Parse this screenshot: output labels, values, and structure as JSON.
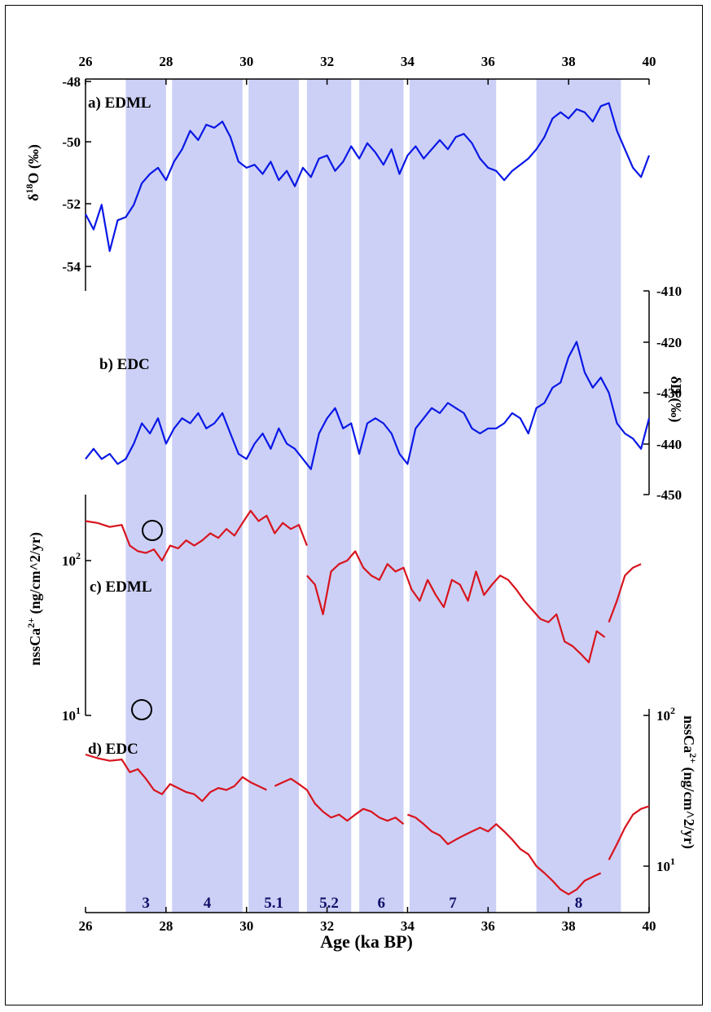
{
  "chart_data": {
    "type": "line",
    "x_axis": {
      "label": "Age (ka BP)",
      "range": [
        26,
        40
      ],
      "ticks": [
        "26",
        "28",
        "30",
        "32",
        "34",
        "36",
        "38",
        "40"
      ]
    },
    "bands": [
      {
        "label": "3",
        "x": [
          27.0,
          28.0
        ]
      },
      {
        "label": "4",
        "x": [
          28.15,
          29.9
        ]
      },
      {
        "label": "5.1",
        "x": [
          30.05,
          31.3
        ]
      },
      {
        "label": "5.2",
        "x": [
          31.5,
          32.6
        ]
      },
      {
        "label": "6",
        "x": [
          32.8,
          33.9
        ]
      },
      {
        "label": "7",
        "x": [
          34.05,
          36.2
        ]
      },
      {
        "label": "8",
        "x": [
          37.2,
          39.3
        ]
      }
    ],
    "band_color": "#8e97ea",
    "panels": [
      {
        "id": "a",
        "label": "a) EDML",
        "ylabel": "δ18O (‰)",
        "ylim": [
          -55,
          -48
        ],
        "yticks": [
          "-48",
          "-50",
          "-52",
          "-54"
        ],
        "axis_side": "left",
        "color": "#0a18e6",
        "series": [
          {
            "x": [
              26.0,
              26.2,
              26.4,
              26.6,
              26.8,
              27.0,
              27.2,
              27.4,
              27.6,
              27.8,
              28.0,
              28.2,
              28.4,
              28.6,
              28.8,
              29.0,
              29.2,
              29.4,
              29.6,
              29.8,
              30.0,
              30.2,
              30.4,
              30.6,
              30.8,
              31.0,
              31.2,
              31.4,
              31.6,
              31.8,
              32.0,
              32.2,
              32.4,
              32.6,
              32.8,
              33.0,
              33.2,
              33.4,
              33.6,
              33.8,
              34.0,
              34.2,
              34.4,
              34.6,
              34.8,
              35.0,
              35.2,
              35.4,
              35.6,
              35.8,
              36.0,
              36.2,
              36.4,
              36.6,
              36.8,
              37.0,
              37.2,
              37.4,
              37.6,
              37.8,
              38.0,
              38.2,
              38.4,
              38.6,
              38.8,
              39.0,
              39.2,
              39.4,
              39.6,
              39.8,
              40.0
            ],
            "y": [
              -52.3,
              -52.8,
              -52.0,
              -53.5,
              -52.5,
              -52.4,
              -52.0,
              -51.3,
              -51.0,
              -50.8,
              -51.2,
              -50.6,
              -50.2,
              -49.6,
              -49.9,
              -49.4,
              -49.5,
              -49.3,
              -49.8,
              -50.6,
              -50.8,
              -50.7,
              -51.0,
              -50.6,
              -51.2,
              -50.9,
              -51.4,
              -50.8,
              -51.1,
              -50.5,
              -50.4,
              -50.9,
              -50.6,
              -50.1,
              -50.5,
              -50.0,
              -50.3,
              -50.7,
              -50.2,
              -51.0,
              -50.4,
              -50.1,
              -50.5,
              -50.2,
              -49.9,
              -50.2,
              -49.8,
              -49.7,
              -50.0,
              -50.5,
              -50.8,
              -50.9,
              -51.2,
              -50.9,
              -50.7,
              -50.5,
              -50.2,
              -49.8,
              -49.2,
              -49.0,
              -49.2,
              -48.9,
              -49.0,
              -49.3,
              -48.8,
              -48.7,
              -49.6,
              -50.2,
              -50.8,
              -51.1,
              -50.4
            ]
          }
        ]
      },
      {
        "id": "b",
        "label": "b) EDC",
        "ylabel": "δD (‰)",
        "ylim": [
          -450,
          -410
        ],
        "yticks": [
          "-410",
          "-420",
          "-430",
          "-440",
          "-450"
        ],
        "axis_side": "right",
        "color": "#0a18e6",
        "series": [
          {
            "x": [
              26.0,
              26.2,
              26.4,
              26.6,
              26.8,
              27.0,
              27.2,
              27.4,
              27.6,
              27.8,
              28.0,
              28.2,
              28.4,
              28.6,
              28.8,
              29.0,
              29.2,
              29.4,
              29.6,
              29.8,
              30.0,
              30.2,
              30.4,
              30.6,
              30.8,
              31.0,
              31.2,
              31.4,
              31.6,
              31.8,
              32.0,
              32.2,
              32.4,
              32.6,
              32.8,
              33.0,
              33.2,
              33.4,
              33.6,
              33.8,
              34.0,
              34.2,
              34.4,
              34.6,
              34.8,
              35.0,
              35.2,
              35.4,
              35.6,
              35.8,
              36.0,
              36.2,
              36.4,
              36.6,
              36.8,
              37.0,
              37.2,
              37.4,
              37.6,
              37.8,
              38.0,
              38.2,
              38.4,
              38.6,
              38.8,
              39.0,
              39.2,
              39.4,
              39.6,
              39.8,
              40.0
            ],
            "y": [
              -443,
              -441,
              -443,
              -442,
              -444,
              -443,
              -440,
              -436,
              -438,
              -435,
              -440,
              -437,
              -435,
              -436,
              -434,
              -437,
              -436,
              -434,
              -438,
              -442,
              -443,
              -440,
              -438,
              -441,
              -437,
              -440,
              -441,
              -443,
              -445,
              -438,
              -435,
              -433,
              -437,
              -436,
              -442,
              -436,
              -435,
              -436,
              -438,
              -442,
              -444,
              -437,
              -435,
              -433,
              -434,
              -432,
              -433,
              -434,
              -437,
              -438,
              -437,
              -437,
              -436,
              -434,
              -435,
              -438,
              -433,
              -432,
              -429,
              -428,
              -423,
              -420,
              -426,
              -429,
              -427,
              -430,
              -436,
              -438,
              -439,
              -441,
              -435
            ]
          }
        ]
      },
      {
        "id": "c",
        "label": "c) EDML",
        "ylabel": "nssCa2+ (ng/cm^2/yr)",
        "yscale": "log",
        "ylim": [
          10,
          250
        ],
        "yticks": [
          "10^2",
          "10^1"
        ],
        "axis_side": "left",
        "color": "#d8141e",
        "series": [
          {
            "x": [
              26.0,
              26.3,
              26.6,
              26.9,
              27.1,
              27.3,
              27.5,
              27.7,
              27.9,
              28.1,
              28.3,
              28.5,
              28.7,
              28.9,
              29.1,
              29.3,
              29.5,
              29.7,
              29.9,
              30.1,
              30.3,
              30.5,
              30.7,
              30.9,
              31.1,
              31.3,
              31.5
            ],
            "y": [
              180,
              175,
              165,
              170,
              125,
              115,
              112,
              118,
              100,
              125,
              120,
              135,
              125,
              135,
              150,
              140,
              160,
              145,
              175,
              210,
              180,
              195,
              150,
              175,
              160,
              170,
              125
            ]
          },
          {
            "x": [
              31.5,
              31.7,
              31.9,
              32.1,
              32.3,
              32.5,
              32.7,
              32.9,
              33.1,
              33.3,
              33.5,
              33.7,
              33.9,
              34.1,
              34.3,
              34.5,
              34.7,
              34.9,
              35.1,
              35.3,
              35.5,
              35.7,
              35.9,
              36.1,
              36.3,
              36.5,
              36.7,
              36.9,
              37.1,
              37.3,
              37.5,
              37.7,
              37.9,
              38.1,
              38.3,
              38.5,
              38.7,
              38.9
            ],
            "y": [
              80,
              70,
              45,
              85,
              95,
              100,
              115,
              90,
              80,
              75,
              95,
              85,
              90,
              65,
              55,
              75,
              60,
              50,
              75,
              70,
              55,
              85,
              60,
              70,
              80,
              75,
              65,
              55,
              48,
              42,
              40,
              45,
              30,
              28,
              25,
              22,
              35,
              32
            ]
          },
          {
            "x": [
              39.0,
              39.2,
              39.4,
              39.6,
              39.8
            ],
            "y": [
              40,
              55,
              80,
              90,
              95
            ]
          }
        ]
      },
      {
        "id": "d",
        "label": "d) EDC",
        "ylabel": "nssCa2+ (ng/cm^2/yr)",
        "yscale": "log",
        "ylim": [
          6,
          100
        ],
        "yticks": [
          "10^2",
          "10^1"
        ],
        "axis_side": "right",
        "color": "#d8141e",
        "series": [
          {
            "x": [
              26.0,
              26.3,
              26.6,
              26.9,
              27.1,
              27.3,
              27.5,
              27.7,
              27.9,
              28.1,
              28.3,
              28.5,
              28.7,
              28.9,
              29.1,
              29.3,
              29.5,
              29.7,
              29.9,
              30.1,
              30.3,
              30.5
            ],
            "y": [
              55,
              52,
              50,
              51,
              42,
              44,
              38,
              32,
              30,
              35,
              33,
              31,
              30,
              27,
              31,
              33,
              32,
              34,
              39,
              36,
              34,
              32
            ]
          },
          {
            "x": [
              30.7,
              30.9,
              31.1,
              31.3,
              31.5,
              31.7,
              31.9,
              32.1,
              32.3,
              32.5,
              32.7,
              32.9,
              33.1,
              33.3,
              33.5,
              33.7,
              33.9
            ],
            "y": [
              34,
              36,
              38,
              35,
              32,
              26,
              23,
              21,
              22,
              20,
              22,
              24,
              23,
              21,
              20,
              21,
              19
            ]
          },
          {
            "x": [
              34.0,
              34.2,
              34.4,
              34.6,
              34.8,
              35.0,
              35.2,
              35.4,
              35.6,
              35.8,
              36.0,
              36.2,
              36.4,
              36.6,
              36.8,
              37.0,
              37.2,
              37.4,
              37.6,
              37.8,
              38.0,
              38.2,
              38.4,
              38.6,
              38.8
            ],
            "y": [
              22,
              21,
              19,
              17,
              16,
              14,
              15,
              16,
              17,
              18,
              17,
              19,
              17,
              15,
              13,
              12,
              10,
              9,
              8,
              7,
              6.5,
              7,
              8,
              8.5,
              9
            ]
          },
          {
            "x": [
              39.0,
              39.2,
              39.4,
              39.6,
              39.8,
              40.0
            ],
            "y": [
              11,
              14,
              18,
              22,
              24,
              25
            ]
          }
        ]
      }
    ]
  }
}
